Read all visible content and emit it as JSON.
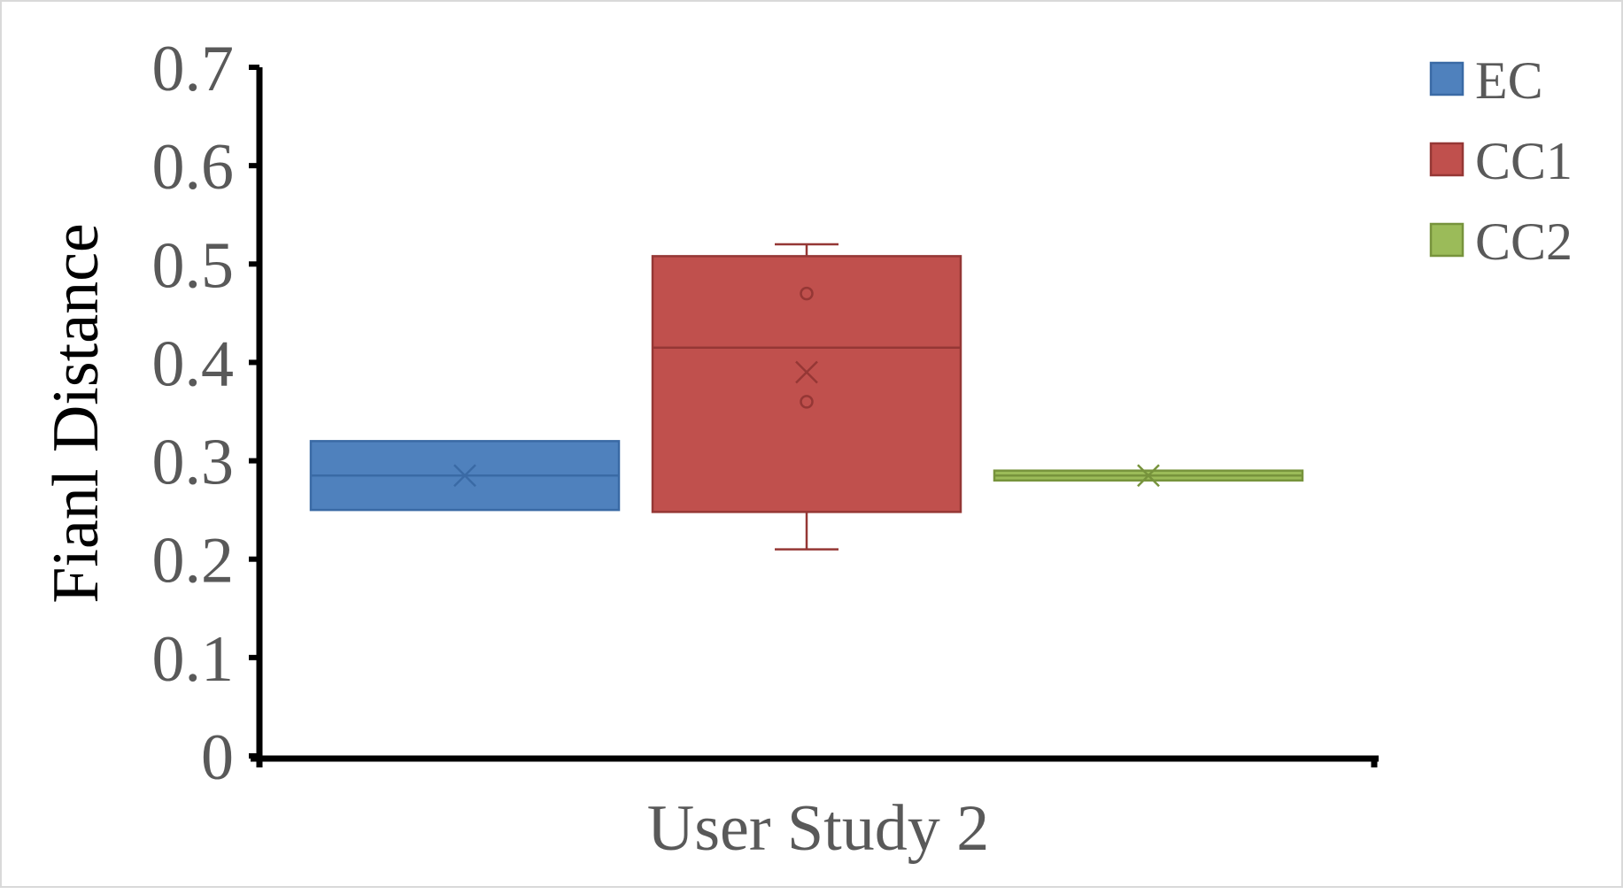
{
  "chart_data": {
    "type": "box",
    "title": "",
    "xlabel": "User Study 2",
    "ylabel": "Fianl Distance",
    "ylim": [
      0,
      0.7
    ],
    "ytick_step": 0.1,
    "yticks": [
      "0",
      "0.1",
      "0.2",
      "0.3",
      "0.4",
      "0.5",
      "0.6",
      "0.7"
    ],
    "grid": false,
    "legend_position": "top-right",
    "series": [
      {
        "name": "EC",
        "color": "#4f81bd",
        "stroke": "#3a6aa5",
        "q1": 0.25,
        "median": 0.285,
        "q3": 0.32,
        "whisker_low": 0.25,
        "whisker_high": 0.32,
        "mean": 0.285,
        "outliers": []
      },
      {
        "name": "CC1",
        "color": "#c0504d",
        "stroke": "#953735",
        "q1": 0.248,
        "median": 0.415,
        "q3": 0.508,
        "whisker_low": 0.21,
        "whisker_high": 0.52,
        "mean": 0.39,
        "outliers": [
          0.47,
          0.36
        ]
      },
      {
        "name": "CC2",
        "color": "#9bbb59",
        "stroke": "#77933c",
        "q1": 0.28,
        "median": 0.285,
        "q3": 0.29,
        "whisker_low": 0.28,
        "whisker_high": 0.29,
        "mean": 0.285,
        "outliers": []
      }
    ]
  }
}
